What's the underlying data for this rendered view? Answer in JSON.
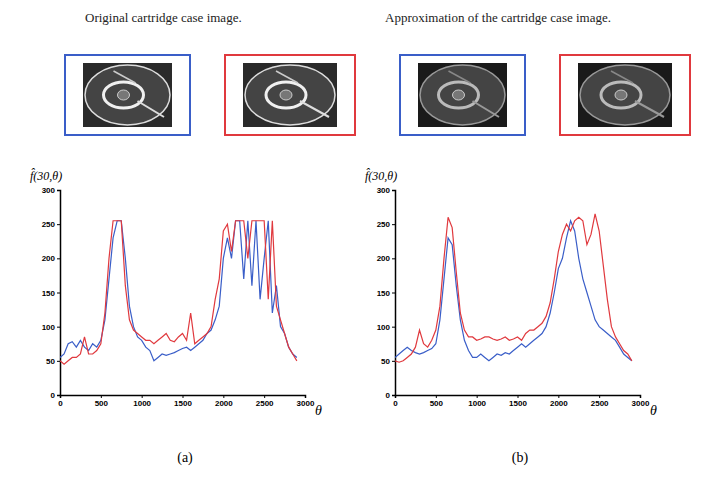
{
  "chart_data": [
    {
      "type": "line",
      "title": "Original cartridge case image.",
      "y_label": "f̂(30,θ)",
      "x_label": "θ",
      "panel_label": "(a)",
      "xlim": [
        0,
        3000
      ],
      "xticks": [
        0,
        500,
        1000,
        1500,
        2000,
        2500,
        3000
      ],
      "ylim": [
        0,
        300
      ],
      "yticks": [
        0,
        50,
        100,
        150,
        200,
        250,
        300
      ],
      "x": [
        0,
        50,
        100,
        150,
        200,
        250,
        300,
        350,
        400,
        450,
        500,
        550,
        600,
        650,
        700,
        750,
        800,
        850,
        900,
        950,
        1000,
        1050,
        1100,
        1150,
        1200,
        1250,
        1300,
        1350,
        1400,
        1450,
        1500,
        1550,
        1600,
        1650,
        1700,
        1750,
        1800,
        1850,
        1900,
        1950,
        2000,
        2050,
        2100,
        2150,
        2200,
        2250,
        2300,
        2350,
        2400,
        2450,
        2500,
        2550,
        2600,
        2650,
        2700,
        2750,
        2800,
        2850,
        2900
      ],
      "series": [
        {
          "color": "#3a5ec8",
          "values": [
            55,
            60,
            75,
            78,
            70,
            80,
            70,
            65,
            75,
            70,
            80,
            110,
            170,
            230,
            255,
            255,
            200,
            130,
            100,
            85,
            80,
            70,
            65,
            50,
            55,
            60,
            58,
            60,
            62,
            65,
            68,
            70,
            65,
            70,
            75,
            80,
            90,
            95,
            110,
            130,
            200,
            230,
            200,
            255,
            255,
            170,
            255,
            160,
            255,
            140,
            200,
            255,
            120,
            160,
            100,
            90,
            70,
            60,
            55
          ]
        },
        {
          "color": "#e0393e",
          "values": [
            50,
            45,
            50,
            55,
            55,
            60,
            85,
            60,
            60,
            65,
            75,
            120,
            200,
            255,
            255,
            255,
            160,
            110,
            95,
            90,
            85,
            80,
            80,
            75,
            80,
            85,
            90,
            80,
            78,
            85,
            90,
            80,
            120,
            75,
            80,
            85,
            90,
            100,
            140,
            170,
            240,
            250,
            210,
            255,
            255,
            255,
            200,
            255,
            255,
            255,
            255,
            140,
            255,
            130,
            110,
            90,
            70,
            60,
            50
          ]
        }
      ]
    },
    {
      "type": "line",
      "title": "Approximation of the cartridge case image.",
      "y_label": "f̂(30,θ)",
      "x_label": "θ",
      "panel_label": "(b)",
      "xlim": [
        0,
        3000
      ],
      "xticks": [
        0,
        500,
        1000,
        1500,
        2000,
        2500,
        3000
      ],
      "ylim": [
        0,
        300
      ],
      "yticks": [
        0,
        50,
        100,
        150,
        200,
        250,
        300
      ],
      "x": [
        0,
        50,
        100,
        150,
        200,
        250,
        300,
        350,
        400,
        450,
        500,
        550,
        600,
        650,
        700,
        750,
        800,
        850,
        900,
        950,
        1000,
        1050,
        1100,
        1150,
        1200,
        1250,
        1300,
        1350,
        1400,
        1450,
        1500,
        1550,
        1600,
        1650,
        1700,
        1750,
        1800,
        1850,
        1900,
        1950,
        2000,
        2050,
        2100,
        2150,
        2200,
        2250,
        2300,
        2350,
        2400,
        2450,
        2500,
        2550,
        2600,
        2650,
        2700,
        2750,
        2800,
        2850,
        2900
      ],
      "series": [
        {
          "color": "#3a5ec8",
          "values": [
            55,
            60,
            65,
            70,
            65,
            62,
            60,
            62,
            65,
            68,
            75,
            110,
            170,
            230,
            220,
            160,
            110,
            80,
            65,
            55,
            55,
            60,
            55,
            50,
            55,
            60,
            58,
            62,
            60,
            65,
            70,
            75,
            70,
            75,
            80,
            85,
            90,
            100,
            120,
            150,
            185,
            200,
            230,
            255,
            240,
            200,
            170,
            150,
            130,
            110,
            100,
            95,
            90,
            85,
            80,
            70,
            60,
            55,
            50
          ]
        },
        {
          "color": "#e0393e",
          "values": [
            50,
            48,
            50,
            55,
            60,
            70,
            95,
            75,
            70,
            80,
            95,
            130,
            200,
            260,
            245,
            180,
            120,
            95,
            85,
            85,
            80,
            82,
            85,
            85,
            82,
            80,
            82,
            85,
            80,
            82,
            85,
            80,
            90,
            95,
            95,
            100,
            105,
            115,
            135,
            170,
            210,
            235,
            250,
            240,
            255,
            260,
            255,
            220,
            235,
            265,
            240,
            190,
            140,
            100,
            85,
            75,
            65,
            60,
            50
          ]
        }
      ]
    }
  ]
}
